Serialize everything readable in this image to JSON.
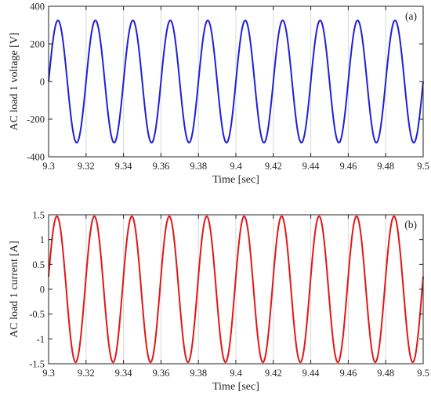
{
  "chart_data": [
    {
      "type": "line",
      "panel_label": "(a)",
      "xlabel": "Time [sec]",
      "ylabel": "AC load 1 voltage [V]",
      "xlim": [
        9.3,
        9.5
      ],
      "ylim": [
        -400,
        400
      ],
      "xticks": [
        9.3,
        9.32,
        9.34,
        9.36,
        9.38,
        9.4,
        9.42,
        9.44,
        9.46,
        9.48,
        9.5
      ],
      "xtick_labels": [
        "9.3",
        "9.32",
        "9.34",
        "9.36",
        "9.38",
        "9.4",
        "9.42",
        "9.44",
        "9.46",
        "9.48",
        "9.5"
      ],
      "yticks": [
        -400,
        -200,
        0,
        200,
        400
      ],
      "ytick_labels": [
        "-400",
        "-200",
        "0",
        "200",
        "400"
      ],
      "grid": "vertical",
      "color": "#1f1fd8",
      "series": [
        {
          "amplitude": 325,
          "frequency_hz": 50,
          "t0": 9.3,
          "phase_deg": 0
        }
      ]
    },
    {
      "type": "line",
      "panel_label": "(b)",
      "xlabel": "Time [sec]",
      "ylabel": "AC load 1 current [A]",
      "xlim": [
        9.3,
        9.5
      ],
      "ylim": [
        -1.5,
        1.5
      ],
      "xticks": [
        9.3,
        9.32,
        9.34,
        9.36,
        9.38,
        9.4,
        9.42,
        9.44,
        9.46,
        9.48,
        9.5
      ],
      "xtick_labels": [
        "9.3",
        "9.32",
        "9.34",
        "9.36",
        "9.38",
        "9.4",
        "9.42",
        "9.44",
        "9.46",
        "9.48",
        "9.5"
      ],
      "yticks": [
        -1.5,
        -1,
        -0.5,
        0,
        0.5,
        1,
        1.5
      ],
      "ytick_labels": [
        "-1.5",
        "-1",
        "-0.5",
        "0",
        "0.5",
        "1",
        "1.5"
      ],
      "grid": "vertical",
      "color": "#e01818",
      "series": [
        {
          "amplitude": 1.47,
          "frequency_hz": 50,
          "t0": 9.3,
          "phase_deg": 10
        }
      ]
    }
  ]
}
